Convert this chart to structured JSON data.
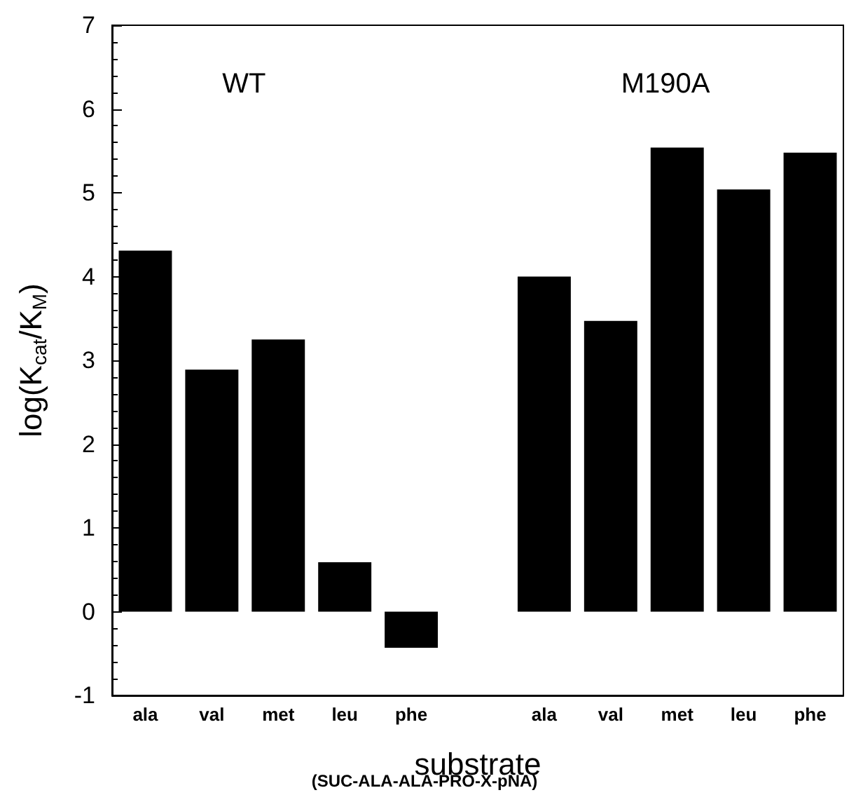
{
  "chart_data": {
    "type": "bar",
    "xlabel": "substrate",
    "ylabel": "log(K$_{cat}$/K$_{M}$)",
    "categories": [
      "ala",
      "val",
      "met",
      "leu",
      "phe",
      null,
      "ala",
      "val",
      "met",
      "leu",
      "phe"
    ],
    "values": [
      4.31,
      2.89,
      3.25,
      0.59,
      -0.43,
      null,
      4.0,
      3.47,
      5.54,
      5.04,
      5.48
    ],
    "color": "#000000",
    "ylim": [
      -1,
      7
    ],
    "yticks": [
      -1,
      0,
      1,
      2,
      3,
      4,
      5,
      6,
      7
    ],
    "grid": false,
    "annotations": [
      "WT",
      "M190A",
      "(SUC-ALA-ALA-PRO-X-pNA)"
    ]
  }
}
